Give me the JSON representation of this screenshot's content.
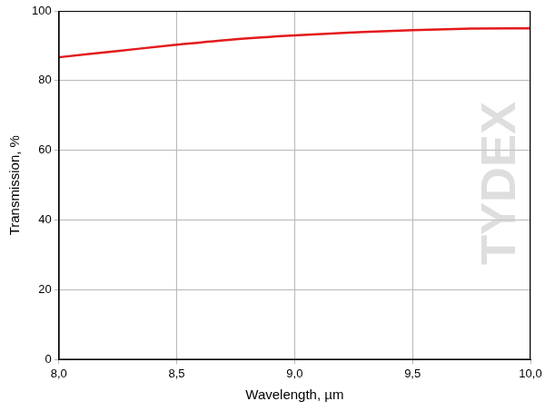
{
  "chart_data": {
    "type": "line",
    "x_label": "Wavelength, µm",
    "y_label": "Transmission, %",
    "annotations": [
      "TYDEX"
    ],
    "series": [
      {
        "name": "Transmission",
        "color": "#e31a1c",
        "x": [
          8.0,
          8.25,
          8.5,
          8.75,
          9.0,
          9.25,
          9.5,
          9.75,
          10.0
        ],
        "values": [
          86.7,
          88.5,
          90.3,
          91.9,
          93.0,
          93.8,
          94.5,
          94.9,
          95.0
        ]
      }
    ],
    "xlim": [
      8.0,
      10.0
    ],
    "xticks": [
      {
        "value": 8.0,
        "label": "8,0"
      },
      {
        "value": 8.5,
        "label": "8,5"
      },
      {
        "value": 9.0,
        "label": "9,0"
      },
      {
        "value": 9.5,
        "label": "9,5"
      },
      {
        "value": 10.0,
        "label": "10,0"
      }
    ],
    "ylim": [
      0,
      100
    ],
    "yticks": [
      0,
      20,
      40,
      60,
      80,
      100
    ],
    "grid": true
  }
}
